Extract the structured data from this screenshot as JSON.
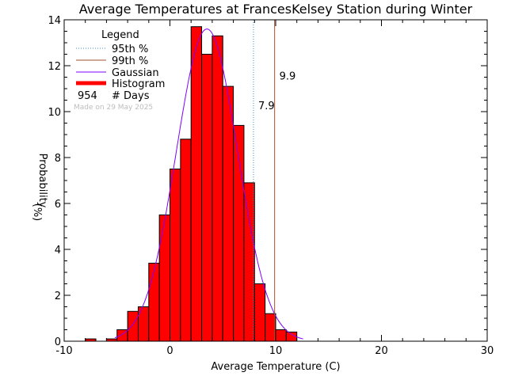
{
  "chart_data": {
    "type": "bar",
    "title": "Average Temperatures at FrancesKelsey Station during Winter",
    "xlabel": "Average Temperature (C)",
    "ylabel_line1": "Probability",
    "ylabel_line2": "(%)",
    "xlim": [
      -10,
      30
    ],
    "ylim": [
      0,
      14
    ],
    "xticks": [
      -10,
      0,
      10,
      20,
      30
    ],
    "yticks": [
      0,
      2,
      4,
      6,
      8,
      10,
      12,
      14
    ],
    "bin_width": 1,
    "bins": [
      {
        "x0": -8,
        "value": 0.1
      },
      {
        "x0": -6,
        "value": 0.1
      },
      {
        "x0": -5,
        "value": 0.5
      },
      {
        "x0": -4,
        "value": 1.3
      },
      {
        "x0": -3,
        "value": 1.5
      },
      {
        "x0": -2,
        "value": 3.4
      },
      {
        "x0": -1,
        "value": 5.5
      },
      {
        "x0": 0,
        "value": 7.5
      },
      {
        "x0": 1,
        "value": 8.8
      },
      {
        "x0": 2,
        "value": 13.7
      },
      {
        "x0": 3,
        "value": 12.5
      },
      {
        "x0": 4,
        "value": 13.3
      },
      {
        "x0": 5,
        "value": 11.1
      },
      {
        "x0": 6,
        "value": 9.4
      },
      {
        "x0": 7,
        "value": 6.9
      },
      {
        "x0": 8,
        "value": 2.5
      },
      {
        "x0": 9,
        "value": 1.2
      },
      {
        "x0": 10,
        "value": 0.5
      },
      {
        "x0": 11,
        "value": 0.4
      }
    ],
    "gaussian": {
      "mean": 3.5,
      "sd": 2.9,
      "peak": 13.6,
      "color": "#7f00ff"
    },
    "percentile_95": {
      "value": 7.9,
      "label": "7.9",
      "color": "#3a8fc8"
    },
    "percentile_99": {
      "value": 9.9,
      "label": "9.9",
      "color": "#a0522d"
    },
    "histogram_color": "#ff0000",
    "legend": {
      "title": "Legend",
      "items": [
        {
          "label": "95th %",
          "style": "dotted",
          "color": "#3a8fc8"
        },
        {
          "label": "99th %",
          "style": "solid",
          "color": "#a0522d"
        },
        {
          "label": "Gaussian",
          "style": "solid",
          "color": "#7f00ff"
        },
        {
          "label": "Histogram",
          "style": "thick",
          "color": "#ff0000"
        }
      ],
      "days_count": "954",
      "days_label": "# Days",
      "made_on": "Made on 29 May 2025"
    }
  }
}
